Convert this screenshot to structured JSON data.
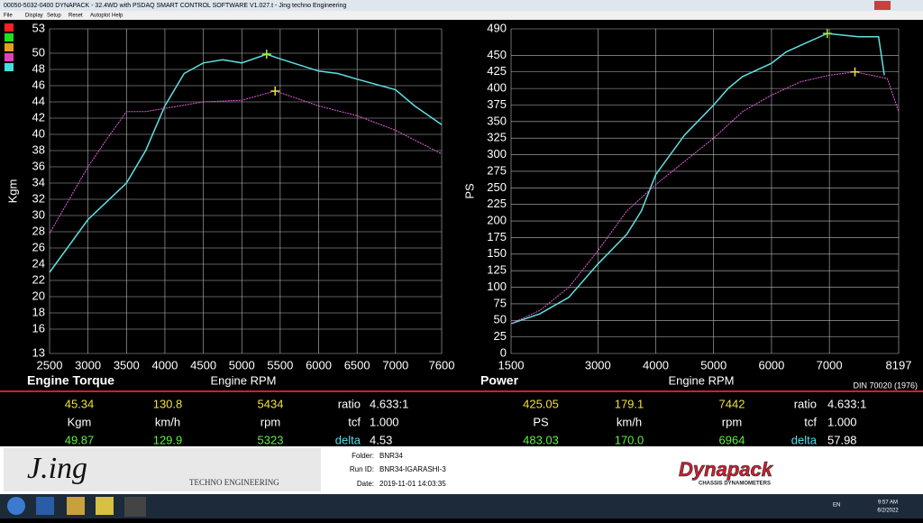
{
  "window": {
    "title": "00050-5032-0400 DYNAPACK - 32.4WD with PSDAQ SMART CONTROL SOFTWARE V1.027.t - Jing techno Engineering",
    "menu": [
      "File",
      "Display",
      "Setup",
      "Reset",
      "Autoplot",
      "Help"
    ]
  },
  "chart_data": [
    {
      "type": "line",
      "title": "Engine Torque",
      "x_label": "Engine RPM",
      "y_label": "Kgm",
      "xlim": [
        2500,
        7600
      ],
      "ylim": [
        13,
        53
      ],
      "xticks": [
        2500,
        3000,
        3500,
        4000,
        4500,
        5000,
        5500,
        6000,
        6500,
        7000,
        7600
      ],
      "yticks": [
        13,
        16,
        18,
        20,
        22,
        24,
        26,
        28,
        30,
        32,
        34,
        36,
        38,
        40,
        42,
        44,
        46,
        48,
        50,
        53
      ],
      "grid": true,
      "series": [
        {
          "color": "#5fe0e0",
          "x": [
            2500,
            3000,
            3500,
            3750,
            4000,
            4250,
            4500,
            4750,
            5000,
            5323,
            5500,
            6000,
            6250,
            6500,
            7000,
            7250,
            7600
          ],
          "values": [
            23,
            29.5,
            34,
            38,
            43.5,
            47.5,
            48.8,
            49.2,
            48.8,
            49.87,
            49.3,
            47.8,
            47.5,
            46.8,
            45.5,
            43.5,
            41.2
          ]
        },
        {
          "color": "#e060d8",
          "x": [
            2500,
            3000,
            3250,
            3500,
            3750,
            4000,
            4500,
            5000,
            5434,
            6000,
            6500,
            7000,
            7600
          ],
          "values": [
            27.8,
            36,
            39.5,
            42.8,
            42.8,
            43.2,
            44,
            44.2,
            45.34,
            43.5,
            42.3,
            40.5,
            37.6
          ]
        }
      ]
    },
    {
      "type": "line",
      "title": "Power",
      "x_label": "Engine RPM",
      "y_label": "PS",
      "note": "DIN 70020 (1976)",
      "xlim": [
        1500,
        8197
      ],
      "ylim": [
        0,
        490
      ],
      "xticks": [
        1500,
        3000,
        4000,
        5000,
        6000,
        7000,
        8197
      ],
      "yticks": [
        0,
        25,
        50,
        75,
        100,
        125,
        150,
        175,
        200,
        225,
        250,
        275,
        300,
        325,
        350,
        375,
        400,
        425,
        450,
        490
      ],
      "grid": true,
      "series": [
        {
          "color": "#5fe0e0",
          "x": [
            1500,
            2000,
            2500,
            3000,
            3500,
            3750,
            4000,
            4500,
            5000,
            5250,
            5500,
            6000,
            6250,
            6500,
            6964,
            7500,
            7850,
            7950
          ],
          "values": [
            45,
            60,
            85,
            135,
            180,
            215,
            270,
            330,
            375,
            400,
            418,
            438,
            455,
            465,
            483.03,
            478,
            478,
            420
          ]
        },
        {
          "color": "#e060d8",
          "x": [
            1500,
            2000,
            2500,
            3000,
            3500,
            4000,
            4500,
            5000,
            5500,
            6000,
            6500,
            7000,
            7442,
            8000,
            8197
          ],
          "values": [
            45,
            65,
            100,
            155,
            215,
            255,
            290,
            325,
            365,
            390,
            410,
            420,
            425.05,
            415,
            365
          ]
        }
      ]
    }
  ],
  "readout": [
    {
      "top": [
        "45.34",
        "130.8",
        "5434",
        "ratio",
        "4.633:1"
      ],
      "mid": [
        "Kgm",
        "km/h",
        "rpm",
        "tcf",
        "1.000"
      ],
      "bot": [
        "49.87",
        "129.9",
        "5323",
        "delta",
        "4.53"
      ]
    },
    {
      "top": [
        "425.05",
        "179.1",
        "7442",
        "ratio",
        "4.633:1"
      ],
      "mid": [
        "PS",
        "km/h",
        "rpm",
        "tcf",
        "1.000"
      ],
      "bot": [
        "483.03",
        "170.0",
        "6964",
        "delta",
        "57.98"
      ]
    }
  ],
  "info": {
    "folder_label": "Folder:",
    "folder": "BNR34",
    "run_label": "Run ID:",
    "run": "BNR34-IGARASHI-3",
    "date_label": "Date:",
    "date": "2019-11-01 14:03:35"
  },
  "logos": {
    "jing": "J.ing",
    "jing_sub": "TECHNO ENGINEERING",
    "dyna": "Dynapack",
    "dyna_sub": "CHASSIS DYNAMOMETERS"
  },
  "taskbar": {
    "lang": "EN",
    "time": "9:57 AM",
    "date": "6/2/2022"
  }
}
